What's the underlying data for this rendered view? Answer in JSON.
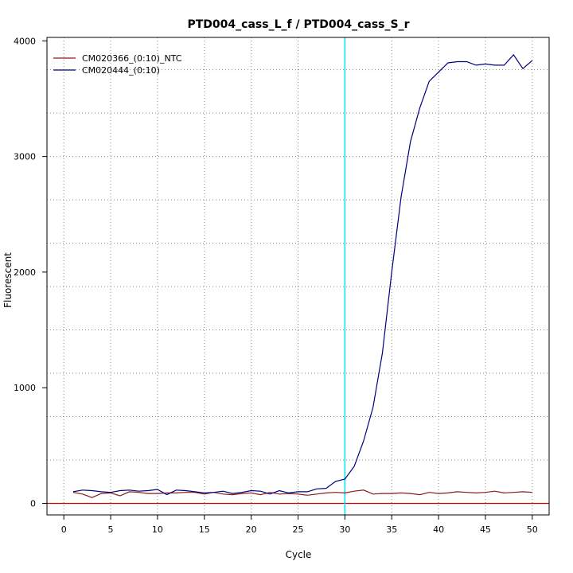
{
  "chart_data": {
    "type": "line",
    "title": "PTD004_cass_L_f / PTD004_cass_S_r",
    "xlabel": "Cycle",
    "ylabel": "Fluorescent",
    "xlim": [
      -1.8,
      51.8
    ],
    "ylim": [
      -100,
      4030
    ],
    "x_ticks": [
      0,
      5,
      10,
      15,
      20,
      25,
      30,
      35,
      40,
      45,
      50
    ],
    "y_ticks": [
      0,
      1000,
      2000,
      3000,
      4000
    ],
    "x_ticks_label": [
      "0",
      "5",
      "10",
      "15",
      "20",
      "25",
      "30",
      "35",
      "40",
      "45",
      "50"
    ],
    "y_ticks_label": [
      "0",
      "1000",
      "2000",
      "3000",
      "4000"
    ],
    "grid": true,
    "grid_style": "dotted",
    "legend_position": "top-left",
    "threshold_line": {
      "axis": "x",
      "value": 30,
      "color": "#00e5ee"
    },
    "baseline_line": {
      "axis": "y",
      "value": 0,
      "color": "#cc0000"
    },
    "x": [
      1,
      2,
      3,
      4,
      5,
      6,
      7,
      8,
      9,
      10,
      11,
      12,
      13,
      14,
      15,
      16,
      17,
      18,
      19,
      20,
      21,
      22,
      23,
      24,
      25,
      26,
      27,
      28,
      29,
      30,
      31,
      32,
      33,
      34,
      35,
      36,
      37,
      38,
      39,
      40,
      41,
      42,
      43,
      44,
      45,
      46,
      47,
      48,
      49,
      50
    ],
    "series": [
      {
        "name": "CM020366_(0:10)_NTC",
        "color": "#8b1a1a",
        "values": [
          95,
          80,
          50,
          85,
          90,
          65,
          100,
          95,
          85,
          85,
          90,
          90,
          95,
          95,
          80,
          95,
          80,
          75,
          85,
          90,
          75,
          95,
          80,
          85,
          80,
          70,
          80,
          90,
          95,
          90,
          105,
          115,
          80,
          85,
          85,
          90,
          85,
          75,
          95,
          85,
          90,
          100,
          95,
          90,
          95,
          105,
          90,
          95,
          100,
          95
        ]
      },
      {
        "name": "CM020444_(0:10)",
        "color": "#000080",
        "values": [
          100,
          115,
          110,
          100,
          95,
          110,
          115,
          105,
          110,
          120,
          75,
          115,
          110,
          100,
          90,
          95,
          105,
          85,
          95,
          110,
          105,
          80,
          110,
          90,
          100,
          100,
          125,
          130,
          190,
          210,
          320,
          540,
          830,
          1300,
          2000,
          2650,
          3130,
          3420,
          3650,
          3730,
          3810,
          3820,
          3820,
          3790,
          3800,
          3790,
          3790,
          3880,
          3760,
          3830
        ]
      }
    ]
  }
}
